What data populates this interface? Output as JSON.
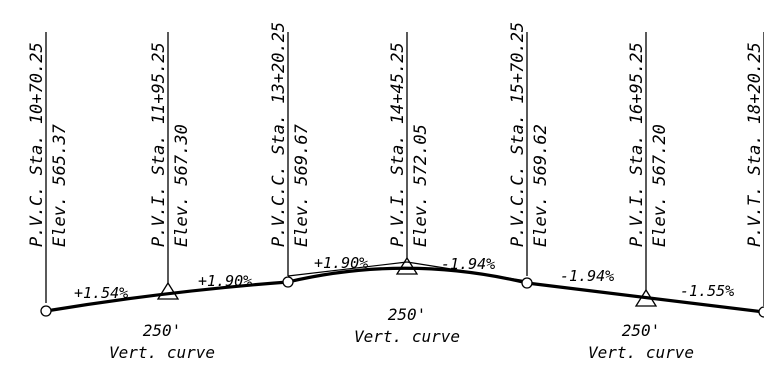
{
  "stations": [
    {
      "type": "P.V.C. Sta. 10+70.25",
      "elev": "Elev. 565.37"
    },
    {
      "type": "P.V.I. Sta. 11+95.25",
      "elev": "Elev. 567.30"
    },
    {
      "type": "P.V.C.C. Sta. 13+20.25",
      "elev": "Elev. 569.67"
    },
    {
      "type": "P.V.I. Sta. 14+45.25",
      "elev": "Elev. 572.05"
    },
    {
      "type": "P.V.C.C. Sta. 15+70.25",
      "elev": "Elev. 569.62"
    },
    {
      "type": "P.V.I. Sta. 16+95.25",
      "elev": "Elev. 567.20"
    },
    {
      "type": "P.V.T. Sta. 18+20.25",
      "elev": ""
    }
  ],
  "grades": [
    "+1.54%",
    "+1.90%",
    "+1.90%",
    "-1.94%",
    "-1.94%",
    "-1.55%"
  ],
  "curves": [
    {
      "length": "250'",
      "label": "Vert. curve"
    },
    {
      "length": "250'",
      "label": "Vert. curve"
    },
    {
      "length": "250'",
      "label": "Vert. curve"
    }
  ]
}
